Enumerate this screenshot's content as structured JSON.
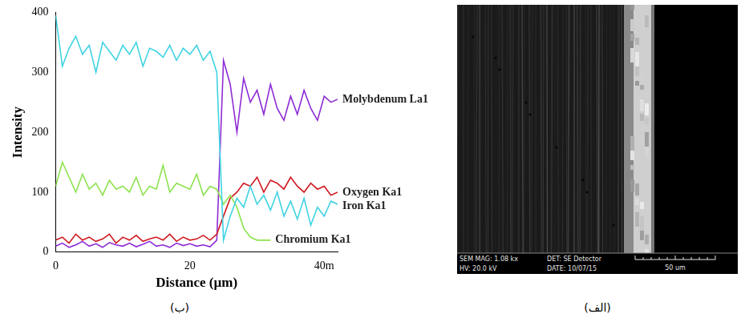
{
  "chart_data": {
    "type": "line",
    "x_label": "Distance (µm)",
    "y_label": "Intensity",
    "x": [
      0,
      1,
      2,
      3,
      4,
      5,
      6,
      7,
      8,
      9,
      10,
      11,
      12,
      13,
      14,
      15,
      16,
      17,
      18,
      19,
      20,
      21,
      22,
      23,
      24,
      25,
      26,
      27,
      28,
      29,
      30,
      31,
      32,
      33,
      34,
      35,
      36,
      37,
      38,
      39,
      40,
      41,
      42
    ],
    "xlim": [
      0,
      42
    ],
    "xticks": [
      0,
      20,
      {
        "value": 40,
        "label": "40m"
      }
    ],
    "ylim": [
      0,
      400
    ],
    "yticks": [
      0,
      100,
      200,
      300,
      400
    ],
    "grid": false,
    "series": [
      {
        "name": "Iron Ka1",
        "color": "#3fd3e3",
        "values": [
          395,
          310,
          340,
          360,
          330,
          345,
          300,
          350,
          335,
          320,
          345,
          330,
          350,
          310,
          340,
          335,
          325,
          345,
          320,
          340,
          330,
          345,
          320,
          335,
          300,
          20,
          60,
          90,
          75,
          110,
          80,
          95,
          70,
          100,
          60,
          85,
          55,
          90,
          45,
          75,
          60,
          85,
          80
        ]
      },
      {
        "name": "Chromium Ka1",
        "color": "#8ce34c",
        "values": [
          110,
          150,
          125,
          100,
          130,
          105,
          115,
          95,
          120,
          105,
          110,
          100,
          125,
          95,
          110,
          105,
          145,
          100,
          115,
          110,
          105,
          130,
          95,
          110,
          105,
          80,
          95,
          75,
          40,
          25,
          20,
          20,
          20,
          null,
          null,
          null,
          null,
          null,
          null,
          null,
          null,
          null,
          null
        ]
      },
      {
        "name": "Oxygen Ka1",
        "color": "#d0191f",
        "values": [
          20,
          25,
          15,
          30,
          20,
          25,
          18,
          22,
          30,
          15,
          25,
          20,
          28,
          18,
          22,
          25,
          20,
          30,
          18,
          25,
          20,
          22,
          28,
          20,
          30,
          60,
          90,
          100,
          115,
          110,
          125,
          100,
          120,
          115,
          105,
          125,
          110,
          100,
          115,
          105,
          110,
          95,
          100
        ]
      },
      {
        "name": "Molybdenum La1",
        "color": "#8e2bd6",
        "values": [
          10,
          15,
          8,
          12,
          18,
          10,
          14,
          8,
          16,
          12,
          10,
          15,
          9,
          13,
          18,
          10,
          12,
          8,
          15,
          11,
          14,
          10,
          12,
          9,
          20,
          320,
          280,
          200,
          290,
          250,
          270,
          230,
          280,
          240,
          220,
          260,
          230,
          270,
          240,
          220,
          260,
          250,
          255
        ]
      }
    ]
  },
  "captions": {
    "chart": "(ب)",
    "image": "(الف)"
  },
  "image": {
    "info": [
      "SEM MAG: 1.08 kx",
      "DET: SE Detector",
      "HV: 20.0 kV",
      "DATE: 10/07/15"
    ],
    "scale_bar": "50 um"
  }
}
